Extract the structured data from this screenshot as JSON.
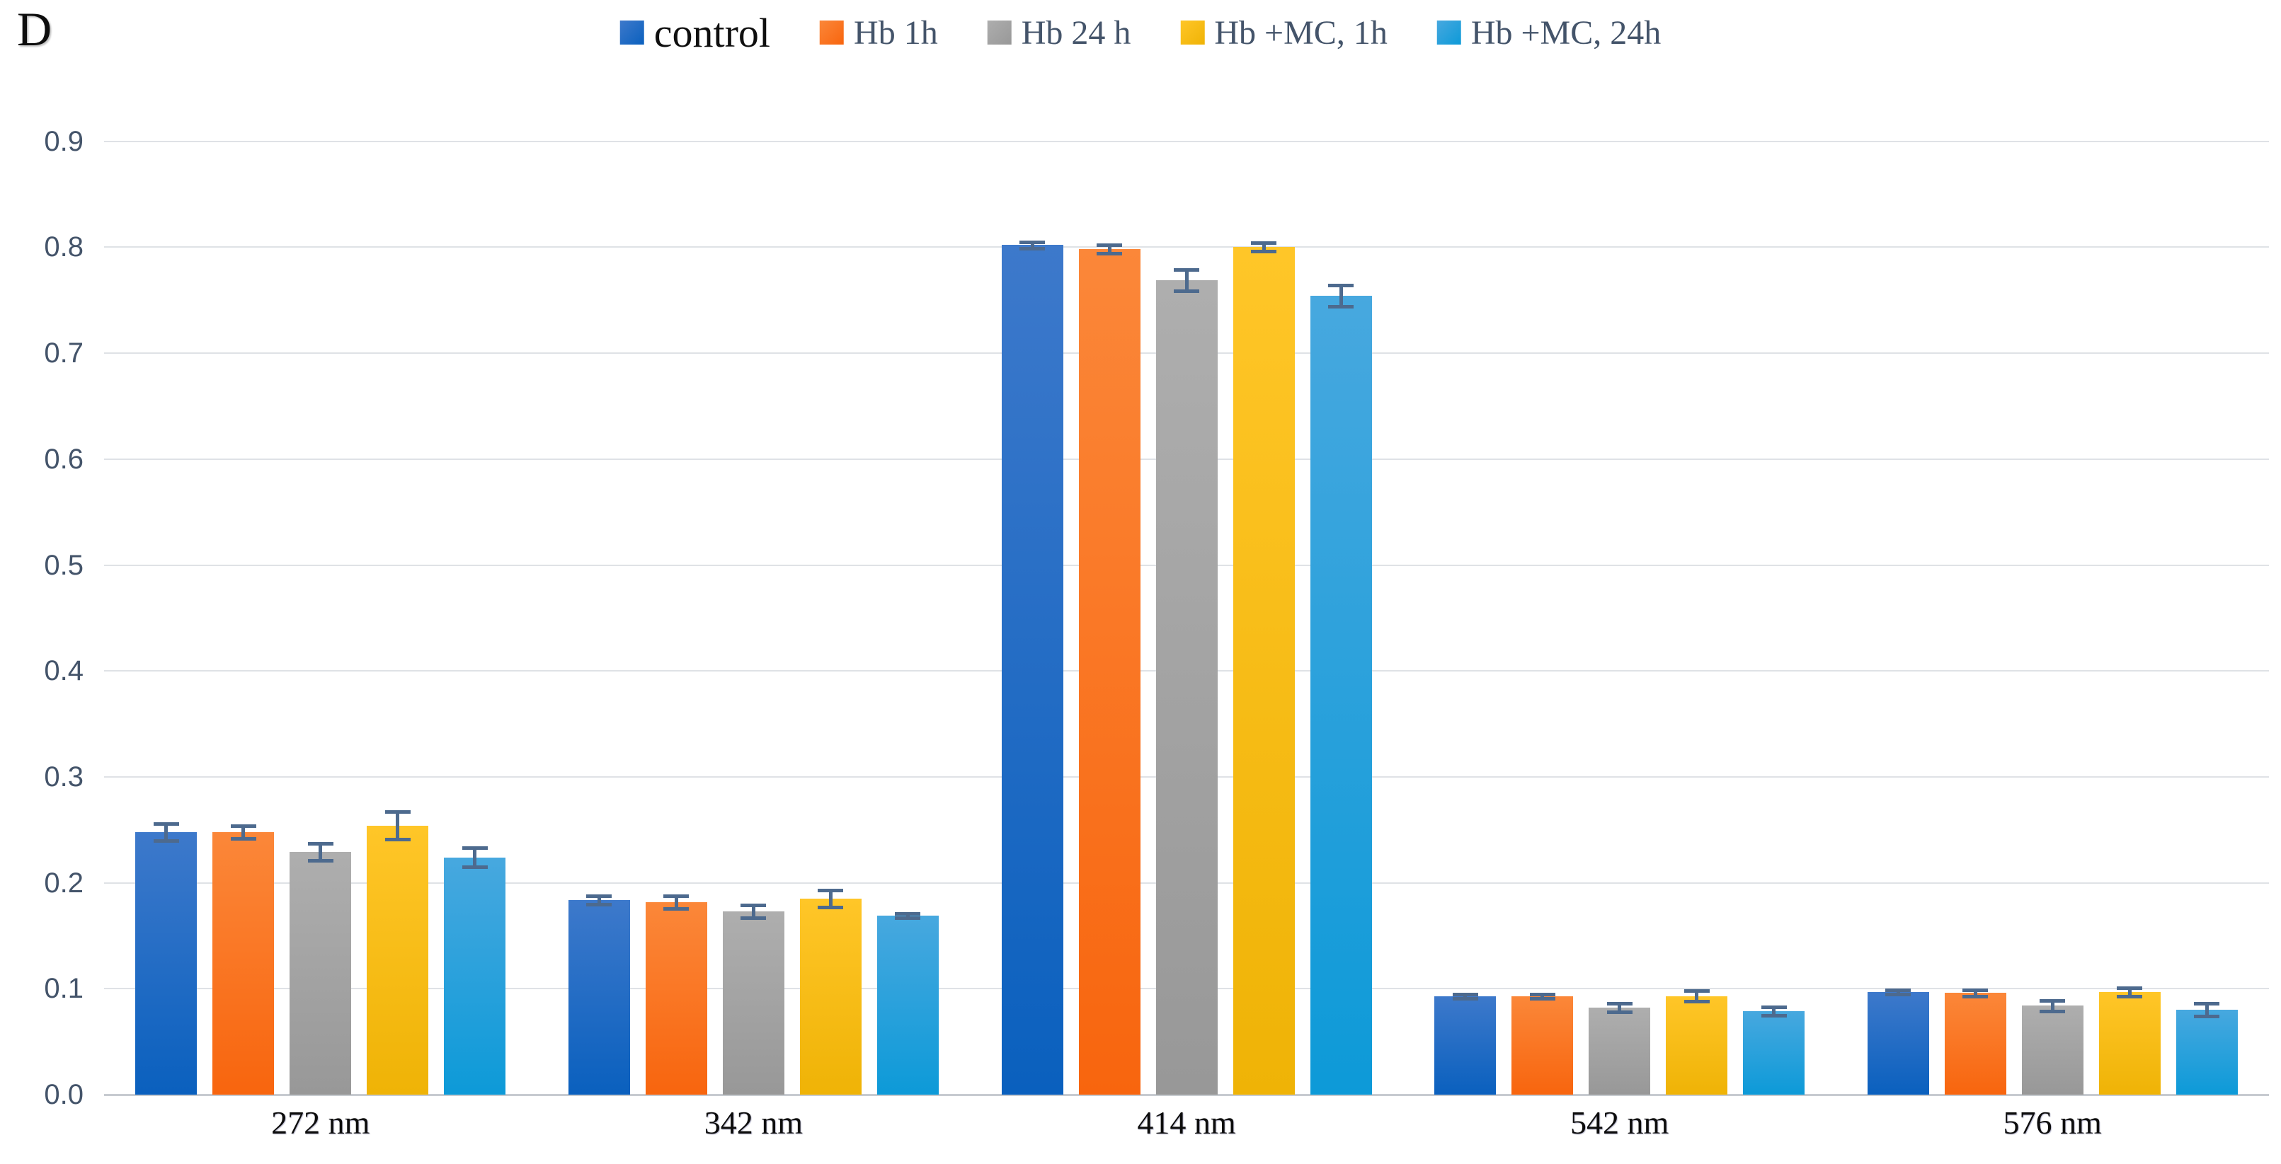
{
  "panel_label": "D",
  "axis": {
    "ytick_labels": [
      "0.0",
      "0.1",
      "0.2",
      "0.3",
      "0.4",
      "0.5",
      "0.6",
      "0.7",
      "0.8",
      "0.9"
    ]
  },
  "chart_data": {
    "type": "bar",
    "title": "",
    "xlabel": "",
    "ylabel": "",
    "categories": [
      "272 nm",
      "342 nm",
      "414 nm",
      "542 nm",
      "576 nm"
    ],
    "series": [
      {
        "name": "control",
        "color_top": "#3d79cb",
        "color_bottom": "#0a60be",
        "legend_color": "#2273c3",
        "values": [
          0.248,
          0.184,
          0.802,
          0.093,
          0.097
        ],
        "errors": [
          0.008,
          0.004,
          0.003,
          0.002,
          0.002
        ]
      },
      {
        "name": "Hb 1h",
        "color_top": "#fb8739",
        "color_bottom": "#f8650e",
        "legend_color": "#fa7028",
        "values": [
          0.248,
          0.182,
          0.798,
          0.093,
          0.096
        ],
        "errors": [
          0.006,
          0.006,
          0.004,
          0.002,
          0.003
        ]
      },
      {
        "name": "Hb 24 h",
        "color_top": "#aeaeae",
        "color_bottom": "#989898",
        "legend_color": "#a5a5a5",
        "values": [
          0.229,
          0.173,
          0.769,
          0.082,
          0.084
        ],
        "errors": [
          0.008,
          0.006,
          0.01,
          0.004,
          0.005
        ]
      },
      {
        "name": "Hb +MC, 1h",
        "color_top": "#ffc628",
        "color_bottom": "#efb306",
        "legend_color": "#ffc000",
        "values": [
          0.254,
          0.185,
          0.8,
          0.093,
          0.097
        ],
        "errors": [
          0.013,
          0.008,
          0.004,
          0.005,
          0.004
        ]
      },
      {
        "name": "Hb +MC, 24h",
        "color_top": "#47a8df",
        "color_bottom": "#0d9ad8",
        "legend_color": "#2ba0db",
        "values": [
          0.224,
          0.169,
          0.754,
          0.079,
          0.08
        ],
        "errors": [
          0.009,
          0.002,
          0.01,
          0.004,
          0.006
        ]
      }
    ],
    "ylim": [
      0.0,
      0.9
    ],
    "ytick_step": 0.1,
    "grid": true,
    "legend_position": "top",
    "error_bars": true,
    "colors": {
      "gridline": "#dfe2e6",
      "baseline": "#c7cbd0",
      "error_bar": "#4d6a8e",
      "ytick_text": "#44546a",
      "xtick_text": "#0d0d0d"
    }
  }
}
